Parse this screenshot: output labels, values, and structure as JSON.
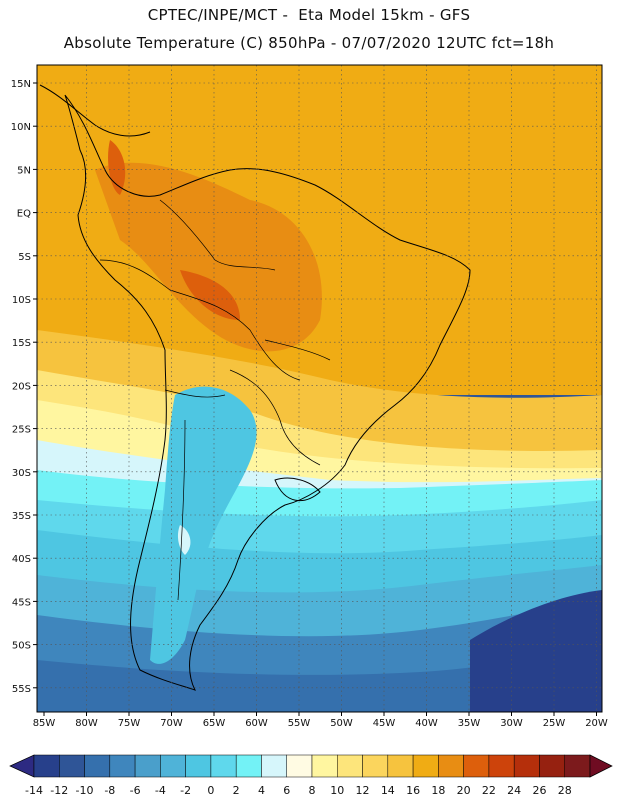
{
  "title": {
    "line1": "CPTEC/INPE/MCT -  Eta Model 15km - GFS",
    "line2": "Absolute Temperature (C) 850hPa - 07/07/2020 12UTC fct=18h"
  },
  "axes": {
    "lat_labels": [
      "15N",
      "10N",
      "5N",
      "EQ",
      "5S",
      "10S",
      "15S",
      "20S",
      "25S",
      "30S",
      "35S",
      "40S",
      "45S",
      "50S",
      "55S"
    ],
    "lon_labels": [
      "85W",
      "80W",
      "75W",
      "70W",
      "65W",
      "60W",
      "55W",
      "50W",
      "45W",
      "40W",
      "35W",
      "30W",
      "25W",
      "20W"
    ]
  },
  "colorbar": {
    "labels": [
      "-14",
      "-12",
      "-10",
      "-8",
      "-6",
      "-4",
      "-2",
      "0",
      "2",
      "4",
      "6",
      "8",
      "10",
      "12",
      "14",
      "16",
      "18",
      "20",
      "22",
      "24",
      "26",
      "28"
    ],
    "under_color": "#2d2a82",
    "over_color": "#6f0c22",
    "colors": [
      "#27408b",
      "#2f5597",
      "#3570ad",
      "#3f86bd",
      "#4a9fcb",
      "#4fb3d8",
      "#4ec6e2",
      "#5fd8ec",
      "#73f2f6",
      "#d6f6fb",
      "#fffbe3",
      "#fff6a0",
      "#fde57b",
      "#fbd55d",
      "#f6c33e",
      "#f0ac14",
      "#e88d13",
      "#dd5f0c",
      "#cd430b",
      "#b52f0b",
      "#962110",
      "#7c1a1c"
    ]
  },
  "map_legend": {
    "ocean_cold": "#3f86bd",
    "ocean_mid": "#4fb3d8",
    "ocean_warm": "#f6c33e",
    "land_hot": "#e88d13"
  }
}
